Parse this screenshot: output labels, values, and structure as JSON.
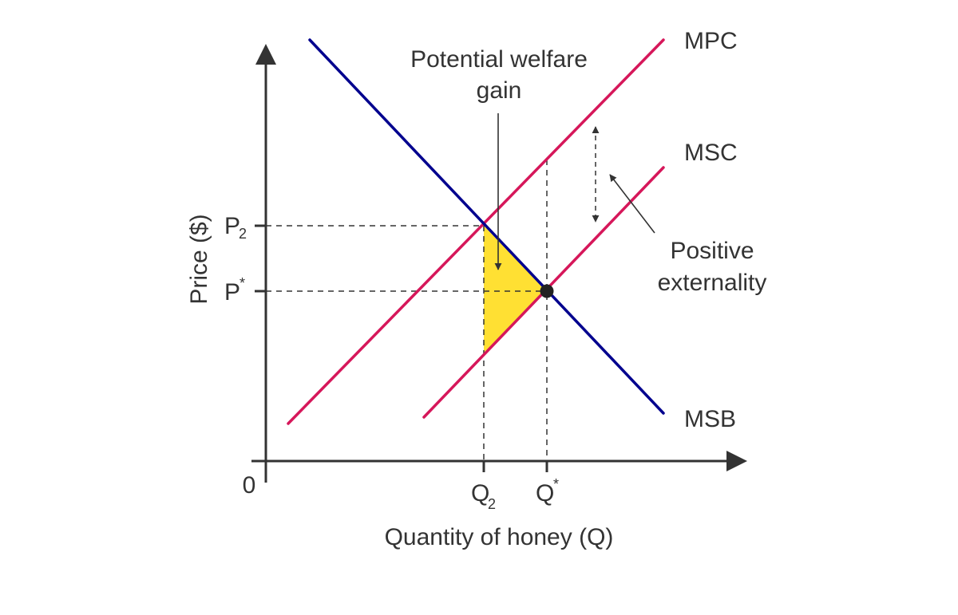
{
  "colors": {
    "axis": "#333333",
    "mpc": "#d6175a",
    "msc": "#d6175a",
    "msb": "#00008e",
    "welfare_area": "#ffe033",
    "guide": "#333333",
    "equilibrium_point": "#222222"
  },
  "axes": {
    "origin": "0",
    "x_label": "Quantity of honey (Q)",
    "y_label": "Price ($)"
  },
  "ticks": {
    "p2_main": "P",
    "p2_sub": "2",
    "pstar_main": "P",
    "pstar_sup": "*",
    "q2_main": "Q",
    "q2_sub": "2",
    "qstar_main": "Q",
    "qstar_sup": "*"
  },
  "curves": {
    "mpc": "MPC",
    "msc": "MSC",
    "msb": "MSB"
  },
  "annotations": {
    "welfare_line1": "Potential welfare",
    "welfare_line2": "gain",
    "externality_line1": "Positive",
    "externality_line2": "externality"
  }
}
